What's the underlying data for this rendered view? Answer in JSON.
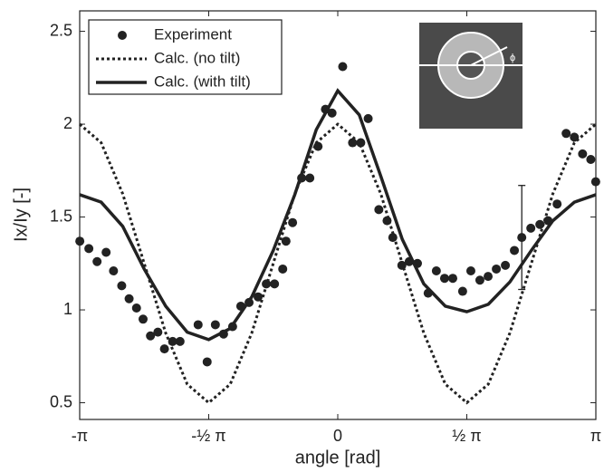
{
  "chart_data": {
    "type": "line",
    "xlabel": "angle [rad]",
    "ylabel": "Ix/Iy [-]",
    "xlim": [
      -3.1416,
      3.1416
    ],
    "ylim": [
      0.41,
      2.61
    ],
    "xticks": [
      {
        "value": -3.1416,
        "label": "-π"
      },
      {
        "value": -1.5708,
        "label": "-½ π"
      },
      0,
      {
        "value": 1.5708,
        "label": "½ π"
      },
      {
        "value": 3.1416,
        "label": "π"
      }
    ],
    "yticks": [
      0.5,
      1,
      1.5,
      2,
      2.5
    ],
    "legend": "upper left",
    "inset_label": "ϕ",
    "series": [
      {
        "name": "Experiment",
        "color": "#222",
        "style": "markers",
        "x": [
          -3.14,
          -3.03,
          -2.93,
          -2.82,
          -2.73,
          -2.63,
          -2.54,
          -2.45,
          -2.37,
          -2.28,
          -2.19,
          -2.11,
          -2.01,
          -1.92,
          -1.7,
          -1.59,
          -1.49,
          -1.39,
          -1.28,
          -1.18,
          -1.08,
          -0.97,
          -0.87,
          -0.77,
          -0.67,
          -0.63,
          -0.55,
          -0.44,
          -0.34,
          -0.24,
          -0.15,
          -0.07,
          0.06,
          0.18,
          0.28,
          0.37,
          0.5,
          0.6,
          0.67,
          0.78,
          0.87,
          0.97,
          1.1,
          1.2,
          1.3,
          1.4,
          1.52,
          1.62,
          1.73,
          1.83,
          1.93,
          2.04,
          2.15,
          2.24,
          2.35,
          2.46,
          2.56,
          2.67,
          2.78,
          2.88,
          2.98,
          3.08,
          3.14
        ],
        "values": [
          1.37,
          1.33,
          1.26,
          1.31,
          1.21,
          1.13,
          1.06,
          1.01,
          0.95,
          0.86,
          0.88,
          0.79,
          0.83,
          0.83,
          0.92,
          0.72,
          0.92,
          0.87,
          0.91,
          1.02,
          1.04,
          1.07,
          1.14,
          1.14,
          1.22,
          1.37,
          1.47,
          1.71,
          1.71,
          1.88,
          2.08,
          2.06,
          2.31,
          1.9,
          1.9,
          2.03,
          1.54,
          1.48,
          1.39,
          1.24,
          1.26,
          1.25,
          1.09,
          1.21,
          1.17,
          1.17,
          1.1,
          1.21,
          1.16,
          1.18,
          1.22,
          1.24,
          1.32,
          1.39,
          1.44,
          1.46,
          1.48,
          1.57,
          1.95,
          1.93,
          1.84,
          1.81,
          1.69
        ]
      },
      {
        "name": "Calc. (no tilt)",
        "color": "#222",
        "style": "dotted",
        "x": [
          -3.1416,
          -2.8798,
          -2.618,
          -2.3562,
          -2.0944,
          -1.8326,
          -1.5708,
          -1.309,
          -1.0472,
          -0.7854,
          -0.5236,
          -0.2618,
          0,
          0.2618,
          0.5236,
          0.7854,
          1.0472,
          1.309,
          1.5708,
          1.8326,
          2.0944,
          2.3562,
          2.618,
          2.8798,
          3.1416
        ],
        "values": [
          2,
          1.9,
          1.625,
          1.25,
          0.875,
          0.6,
          0.5,
          0.6,
          0.875,
          1.25,
          1.625,
          1.9,
          2,
          1.9,
          1.625,
          1.25,
          0.875,
          0.6,
          0.5,
          0.6,
          0.875,
          1.25,
          1.625,
          1.9,
          2
        ]
      },
      {
        "name": "Calc. (with tilt)",
        "color": "#222",
        "style": "solid",
        "x": [
          -3.1416,
          -2.8798,
          -2.618,
          -2.3562,
          -2.0944,
          -1.8326,
          -1.5708,
          -1.309,
          -1.0472,
          -0.7854,
          -0.5236,
          -0.2618,
          0,
          0.2618,
          0.5236,
          0.7854,
          1.0472,
          1.309,
          1.5708,
          1.8326,
          2.0944,
          2.3562,
          2.618,
          2.8798,
          3.1416
        ],
        "values": [
          1.62,
          1.58,
          1.45,
          1.22,
          1.02,
          0.88,
          0.84,
          0.9,
          1.07,
          1.32,
          1.62,
          1.97,
          2.18,
          2.05,
          1.72,
          1.38,
          1.14,
          1.02,
          0.99,
          1.03,
          1.15,
          1.32,
          1.48,
          1.58,
          1.62
        ]
      }
    ],
    "error_bar": {
      "x": 2.24,
      "value": 1.39,
      "error": 0.28
    }
  }
}
